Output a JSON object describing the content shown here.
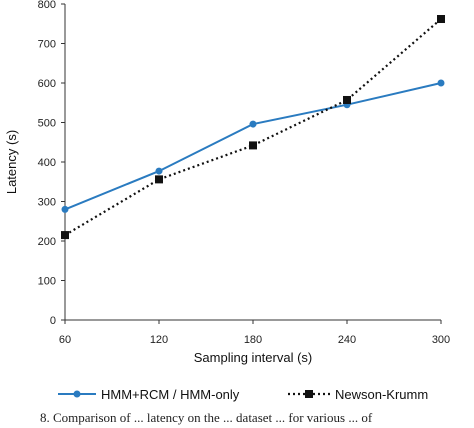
{
  "chart_data": {
    "type": "line",
    "title": "",
    "xlabel": "Sampling interval (s)",
    "ylabel": "Latency (s)",
    "categories": [
      "60",
      "120",
      "180",
      "240",
      "300"
    ],
    "x": [
      60,
      120,
      180,
      240,
      300
    ],
    "ylim": [
      0,
      800
    ],
    "yticks": [
      "0",
      "100",
      "200",
      "300",
      "400",
      "500",
      "600",
      "700",
      "800"
    ],
    "grid": false,
    "legend_position": "bottom",
    "series": [
      {
        "name": "HMM+RCM / HMM-only",
        "values": [
          280,
          377,
          496,
          545,
          600
        ],
        "color": "#2a7bc0",
        "line_style": "solid",
        "marker": "circle"
      },
      {
        "name": "Newson-Krumm",
        "values": [
          215,
          356,
          442,
          557,
          762
        ],
        "color": "#111111",
        "line_style": "dotted",
        "marker": "square"
      }
    ]
  },
  "caption_fragment": "8.  Comparison of ... latency on the ... dataset ... for various ... of"
}
